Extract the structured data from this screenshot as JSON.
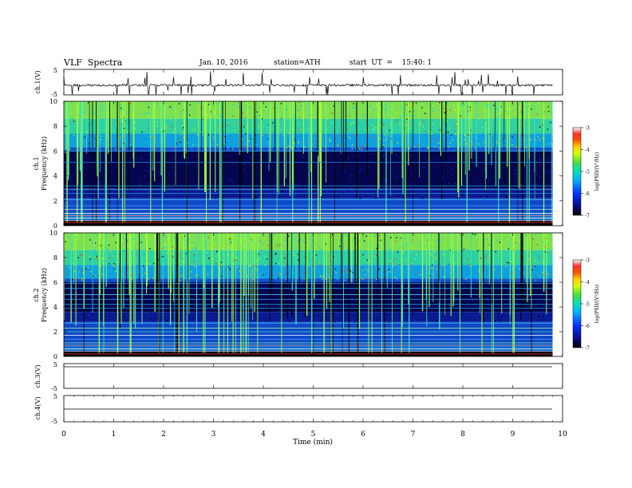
{
  "header": {
    "title": "VLF  Spectra",
    "date": "Jan. 10, 2016",
    "station": "station=ATH",
    "start": "start  UT  =    15:40: 1"
  },
  "chart_data": [
    {
      "type": "line",
      "panel": "ch1-waveform",
      "ylabel": "ch.1(V)",
      "ylim": [
        -5,
        5
      ],
      "yticks": [
        "5",
        "-5"
      ],
      "xlim": [
        0,
        10
      ]
    },
    {
      "type": "heatmap",
      "panel": "ch1-spectrogram",
      "ylabel": "ch.1\nFrequency  (kHz)",
      "ylabel_line1": "ch.1",
      "ylabel_line2": "Frequency  (kHz)",
      "ylim": [
        0,
        10
      ],
      "yticks": [
        "0",
        "2",
        "4",
        "6",
        "8",
        "10"
      ],
      "xlim": [
        0,
        10
      ],
      "colorbar": {
        "label": "log(PSD/(V²/Hz)",
        "range": [
          -7,
          -3
        ],
        "ticks": [
          "-3",
          "-4",
          "-5",
          "-6",
          "-7"
        ]
      },
      "dark_band_khz": [
        2.2,
        6.0
      ]
    },
    {
      "type": "heatmap",
      "panel": "ch2-spectrogram",
      "ylabel_line1": "ch.2",
      "ylabel_line2": "Frequency  (kHz)",
      "ylim": [
        0,
        10
      ],
      "yticks": [
        "0",
        "2",
        "4",
        "6",
        "8",
        "10"
      ],
      "xlim": [
        0,
        10
      ],
      "colorbar": {
        "label": "log(PSD/(V²/Hz)",
        "range": [
          -7,
          -3
        ],
        "ticks": [
          "-3",
          "-4",
          "-5",
          "-6",
          "-7"
        ]
      },
      "dark_band_khz": [
        2.8,
        6.0
      ]
    },
    {
      "type": "line",
      "panel": "ch3-waveform",
      "ylabel": "ch.3(V)",
      "ylim": [
        -5,
        5
      ],
      "yticks": [
        "5",
        "-5"
      ],
      "xlim": [
        0,
        10
      ]
    },
    {
      "type": "line",
      "panel": "ch4-waveform",
      "ylabel": "ch.4(V)",
      "ylim": [
        -5,
        5
      ],
      "yticks": [
        "5",
        "-5"
      ],
      "xlim": [
        0,
        10
      ]
    }
  ],
  "xaxis": {
    "label": "Time  (min)",
    "ticks": [
      "0",
      "1",
      "2",
      "3",
      "4",
      "5",
      "6",
      "7",
      "8",
      "9",
      "10"
    ],
    "range": [
      0,
      10
    ],
    "data_end_min": 9.8
  },
  "colors": {
    "ink": "#000000",
    "palette": [
      "#000000",
      "#0a0a80",
      "#0020ff",
      "#0090ff",
      "#00e0e0",
      "#00d060",
      "#a0ff20",
      "#ffff00",
      "#ff9000",
      "#ff0000",
      "#ffc0c0",
      "#ffffff"
    ]
  }
}
